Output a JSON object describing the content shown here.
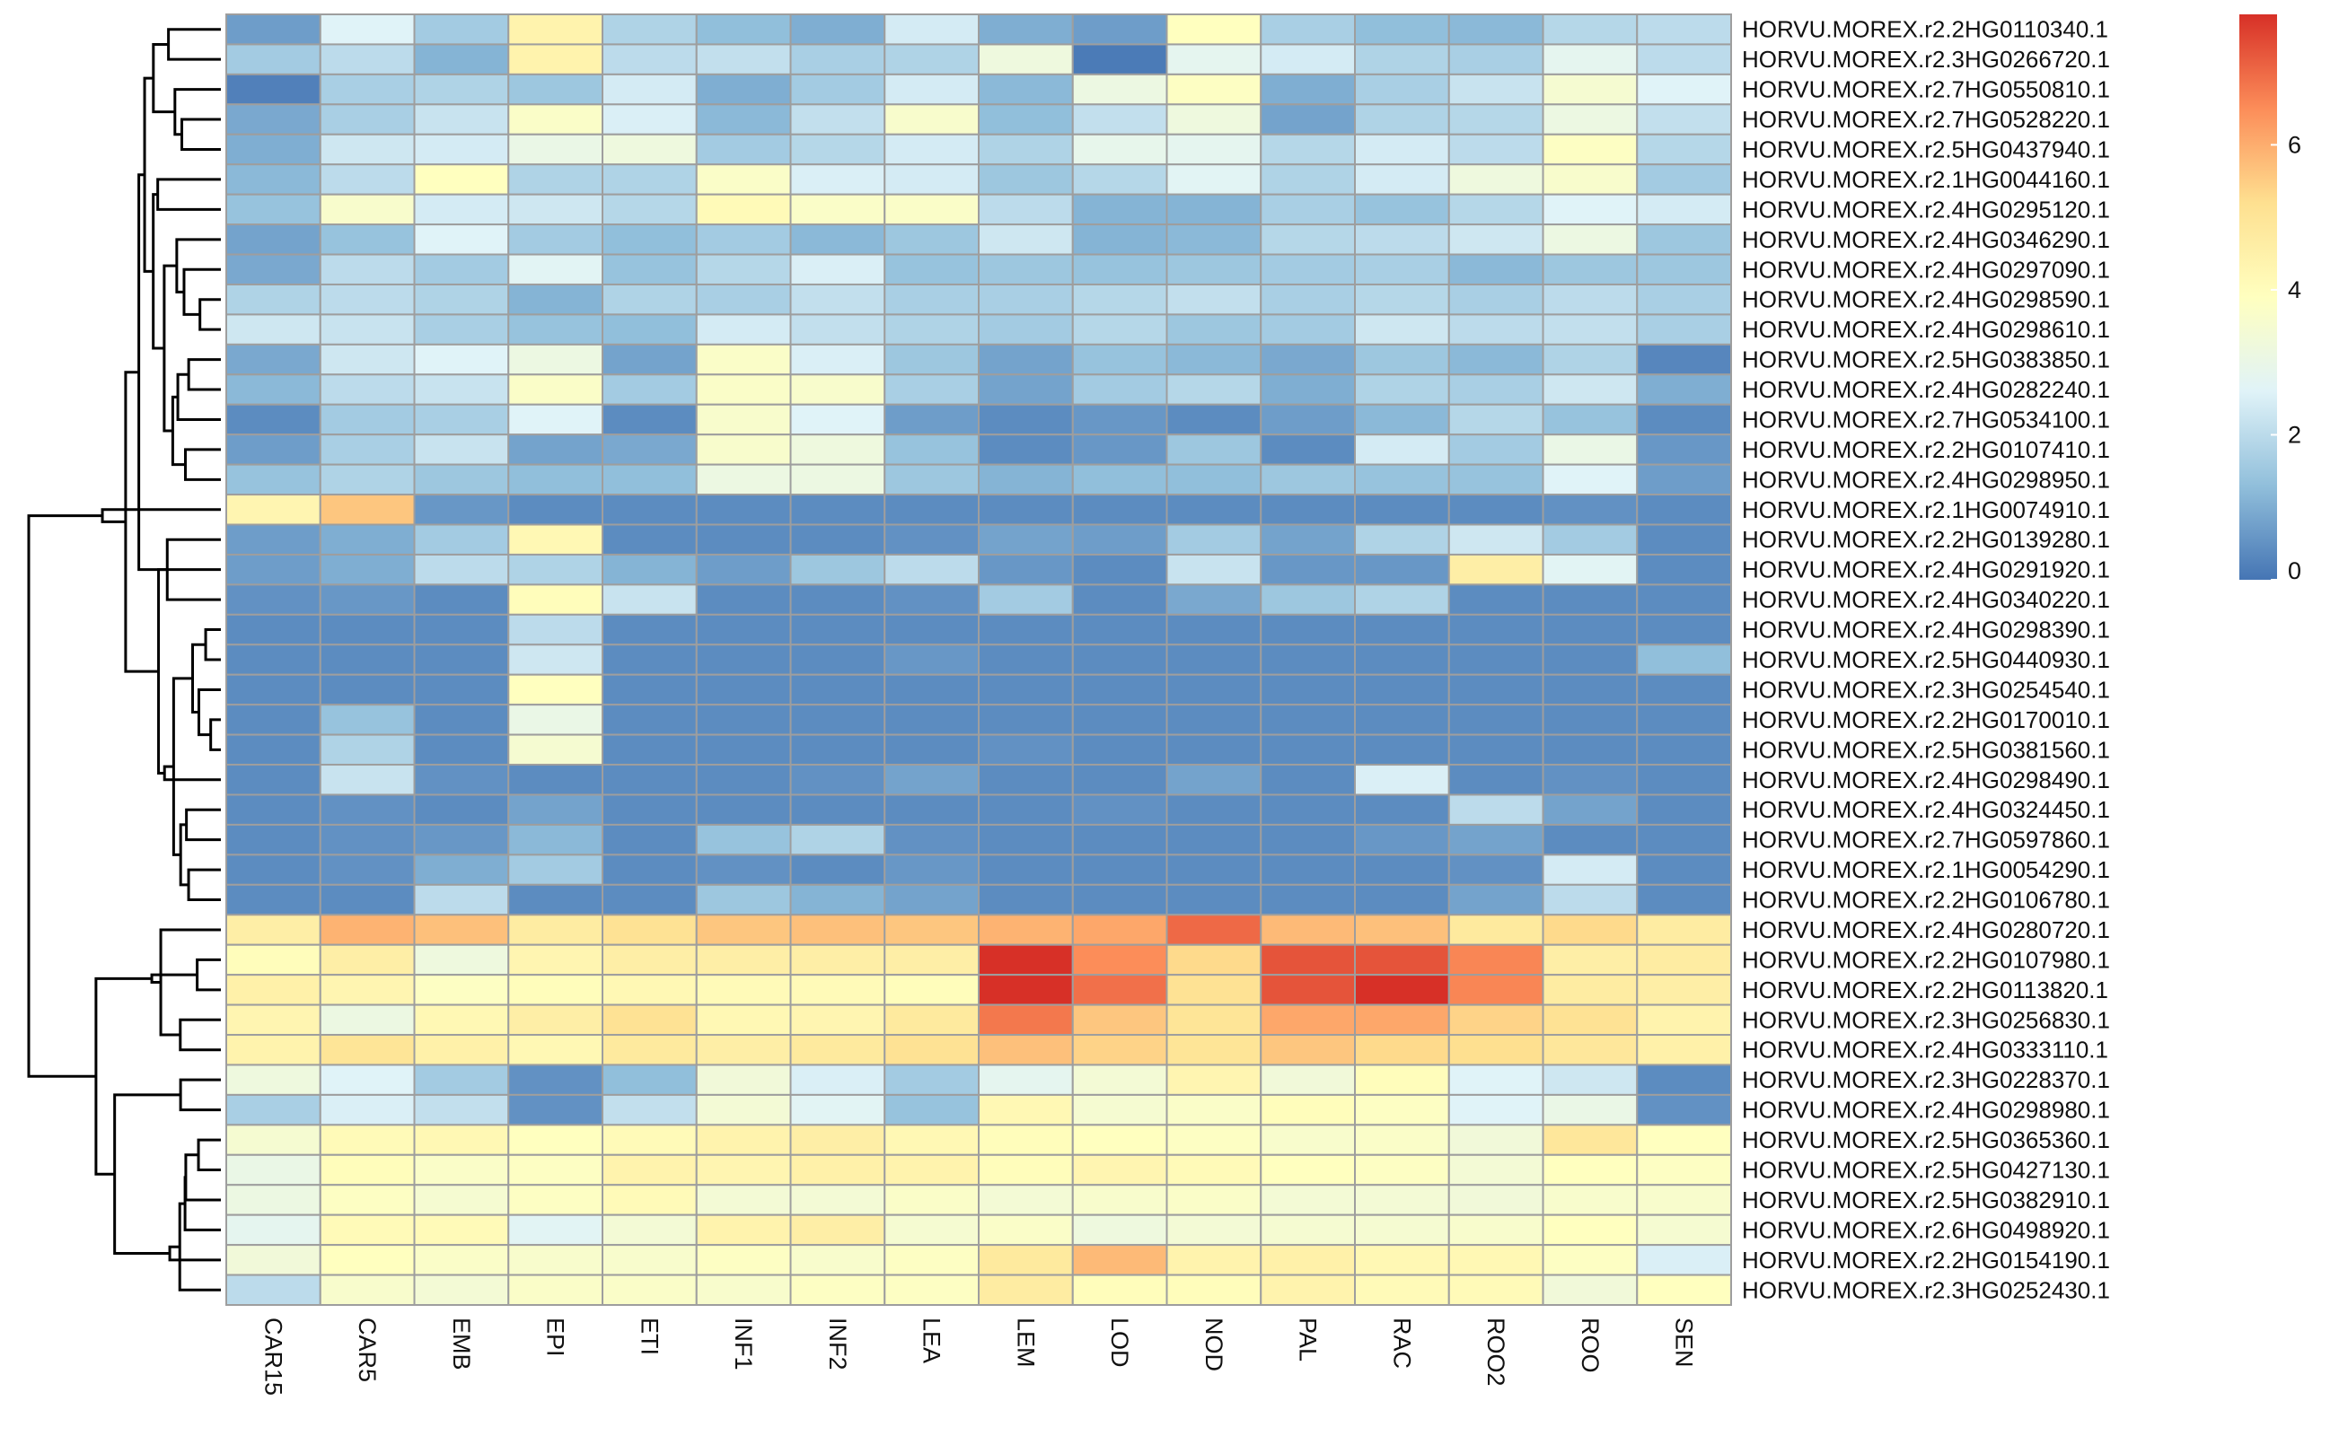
{
  "chart_data": {
    "type": "heatmap",
    "title": "",
    "xlabel": "",
    "ylabel": "",
    "columns": [
      "CAR15",
      "CAR5",
      "EMB",
      "EPI",
      "ETI",
      "INF1",
      "INF2",
      "LEA",
      "LEM",
      "LOD",
      "NOD",
      "PAL",
      "RAC",
      "ROO2",
      "ROO",
      "SEN"
    ],
    "rows": [
      "HORVU.MOREX.r2.2HG0110340.1",
      "HORVU.MOREX.r2.3HG0266720.1",
      "HORVU.MOREX.r2.7HG0550810.1",
      "HORVU.MOREX.r2.7HG0528220.1",
      "HORVU.MOREX.r2.5HG0437940.1",
      "HORVU.MOREX.r2.1HG0044160.1",
      "HORVU.MOREX.r2.4HG0295120.1",
      "HORVU.MOREX.r2.4HG0346290.1",
      "HORVU.MOREX.r2.4HG0297090.1",
      "HORVU.MOREX.r2.4HG0298590.1",
      "HORVU.MOREX.r2.4HG0298610.1",
      "HORVU.MOREX.r2.5HG0383850.1",
      "HORVU.MOREX.r2.4HG0282240.1",
      "HORVU.MOREX.r2.7HG0534100.1",
      "HORVU.MOREX.r2.2HG0107410.1",
      "HORVU.MOREX.r2.4HG0298950.1",
      "HORVU.MOREX.r2.1HG0074910.1",
      "HORVU.MOREX.r2.2HG0139280.1",
      "HORVU.MOREX.r2.4HG0291920.1",
      "HORVU.MOREX.r2.4HG0340220.1",
      "HORVU.MOREX.r2.4HG0298390.1",
      "HORVU.MOREX.r2.5HG0440930.1",
      "HORVU.MOREX.r2.3HG0254540.1",
      "HORVU.MOREX.r2.2HG0170010.1",
      "HORVU.MOREX.r2.5HG0381560.1",
      "HORVU.MOREX.r2.4HG0298490.1",
      "HORVU.MOREX.r2.4HG0324450.1",
      "HORVU.MOREX.r2.7HG0597860.1",
      "HORVU.MOREX.r2.1HG0054290.1",
      "HORVU.MOREX.r2.2HG0106780.1",
      "HORVU.MOREX.r2.4HG0280720.1",
      "HORVU.MOREX.r2.2HG0107980.1",
      "HORVU.MOREX.r2.2HG0113820.1",
      "HORVU.MOREX.r2.3HG0256830.1",
      "HORVU.MOREX.r2.4HG0333110.1",
      "HORVU.MOREX.r2.3HG0228370.1",
      "HORVU.MOREX.r2.4HG0298980.1",
      "HORVU.MOREX.r2.5HG0365360.1",
      "HORVU.MOREX.r2.5HG0427130.1",
      "HORVU.MOREX.r2.5HG0382910.1",
      "HORVU.MOREX.r2.6HG0498920.1",
      "HORVU.MOREX.r2.2HG0154190.1",
      "HORVU.MOREX.r2.3HG0252430.1"
    ],
    "values": [
      [
        0.7,
        2.6,
        1.6,
        4.4,
        1.8,
        1.3,
        1.0,
        2.4,
        1.0,
        0.7,
        3.9,
        1.7,
        1.3,
        1.2,
        1.9,
        2.0
      ],
      [
        1.6,
        2.0,
        1.1,
        4.4,
        2.0,
        2.1,
        1.7,
        1.8,
        3.2,
        0.1,
        2.8,
        2.4,
        1.8,
        1.7,
        2.8,
        2.0
      ],
      [
        0.2,
        1.7,
        1.8,
        1.5,
        2.4,
        1.0,
        1.6,
        2.4,
        1.2,
        3.1,
        3.8,
        1.0,
        1.7,
        2.2,
        3.5,
        2.6
      ],
      [
        0.9,
        1.7,
        2.2,
        3.7,
        2.5,
        1.2,
        2.1,
        3.6,
        1.3,
        2.1,
        3.2,
        0.8,
        1.8,
        1.9,
        3.1,
        2.1
      ],
      [
        1.0,
        2.3,
        2.4,
        3.0,
        3.2,
        1.6,
        1.9,
        2.4,
        1.8,
        2.9,
        2.8,
        1.9,
        2.4,
        2.0,
        3.8,
        1.9
      ],
      [
        1.2,
        2.0,
        3.9,
        1.8,
        1.8,
        3.7,
        2.5,
        2.4,
        1.5,
        1.9,
        2.7,
        1.8,
        2.4,
        3.2,
        3.6,
        1.6
      ],
      [
        1.4,
        3.6,
        2.4,
        2.3,
        1.9,
        4.1,
        3.7,
        3.7,
        2.0,
        1.1,
        1.1,
        1.7,
        1.4,
        1.9,
        2.6,
        2.4
      ],
      [
        0.8,
        1.4,
        2.6,
        1.6,
        1.3,
        1.6,
        1.2,
        1.5,
        2.3,
        1.1,
        1.2,
        1.9,
        2.0,
        2.3,
        3.1,
        1.5
      ],
      [
        0.9,
        2.0,
        1.6,
        2.7,
        1.4,
        1.9,
        2.5,
        1.4,
        1.5,
        1.4,
        1.5,
        1.6,
        1.7,
        1.2,
        1.5,
        1.5
      ],
      [
        1.8,
        2.0,
        1.8,
        1.1,
        1.8,
        1.7,
        2.1,
        1.7,
        1.7,
        1.9,
        2.1,
        1.7,
        1.9,
        1.7,
        2.0,
        1.7
      ],
      [
        2.3,
        2.2,
        1.7,
        1.4,
        1.3,
        2.4,
        2.1,
        1.8,
        1.6,
        1.9,
        1.5,
        1.6,
        2.3,
        2.0,
        2.1,
        1.7
      ],
      [
        0.9,
        2.3,
        2.6,
        3.1,
        0.8,
        3.7,
        2.5,
        1.5,
        0.8,
        1.4,
        1.2,
        0.9,
        1.5,
        1.2,
        1.8,
        0.3
      ],
      [
        1.2,
        2.0,
        2.2,
        3.7,
        1.6,
        3.7,
        3.6,
        1.7,
        0.8,
        1.6,
        1.9,
        1.0,
        1.8,
        1.7,
        2.3,
        1.0
      ],
      [
        0.4,
        1.6,
        1.7,
        2.6,
        0.4,
        3.6,
        2.6,
        0.7,
        0.4,
        0.6,
        0.4,
        0.7,
        1.2,
        1.9,
        1.4,
        0.4
      ],
      [
        0.7,
        1.7,
        2.2,
        0.8,
        0.9,
        3.6,
        3.2,
        1.4,
        0.4,
        0.6,
        1.5,
        0.4,
        2.4,
        1.6,
        3.0,
        0.6
      ],
      [
        1.4,
        1.8,
        1.5,
        1.3,
        1.3,
        3.1,
        3.1,
        1.5,
        1.1,
        1.3,
        1.3,
        1.5,
        1.4,
        1.4,
        2.6,
        0.7
      ],
      [
        4.3,
        5.6,
        0.6,
        0.4,
        0.4,
        0.4,
        0.4,
        0.4,
        0.4,
        0.4,
        0.4,
        0.4,
        0.4,
        0.4,
        0.5,
        0.4
      ],
      [
        0.7,
        1.0,
        1.6,
        4.2,
        0.4,
        0.4,
        0.4,
        0.5,
        0.8,
        0.7,
        1.6,
        0.8,
        1.8,
        2.3,
        1.6,
        0.4
      ],
      [
        0.7,
        1.0,
        2.0,
        1.8,
        1.1,
        0.7,
        1.5,
        2.0,
        0.6,
        0.4,
        2.2,
        0.6,
        0.6,
        4.6,
        2.7,
        0.4
      ],
      [
        0.5,
        0.6,
        0.4,
        4.0,
        2.2,
        0.4,
        0.4,
        0.5,
        1.6,
        0.4,
        0.9,
        1.5,
        1.8,
        0.4,
        0.4,
        0.4
      ],
      [
        0.4,
        0.4,
        0.4,
        2.0,
        0.4,
        0.4,
        0.4,
        0.4,
        0.4,
        0.4,
        0.4,
        0.4,
        0.4,
        0.4,
        0.4,
        0.4
      ],
      [
        0.4,
        0.4,
        0.4,
        2.3,
        0.4,
        0.4,
        0.4,
        0.6,
        0.4,
        0.4,
        0.4,
        0.4,
        0.4,
        0.4,
        0.4,
        1.3
      ],
      [
        0.4,
        0.4,
        0.4,
        3.9,
        0.4,
        0.4,
        0.4,
        0.4,
        0.4,
        0.4,
        0.4,
        0.4,
        0.4,
        0.4,
        0.4,
        0.4
      ],
      [
        0.4,
        1.4,
        0.4,
        3.0,
        0.4,
        0.4,
        0.4,
        0.4,
        0.4,
        0.4,
        0.4,
        0.4,
        0.4,
        0.4,
        0.4,
        0.4
      ],
      [
        0.4,
        1.8,
        0.4,
        3.5,
        0.4,
        0.4,
        0.4,
        0.4,
        0.5,
        0.4,
        0.4,
        0.4,
        0.4,
        0.4,
        0.4,
        0.4
      ],
      [
        0.4,
        2.2,
        0.5,
        0.4,
        0.4,
        0.4,
        0.5,
        0.8,
        0.4,
        0.4,
        0.8,
        0.4,
        2.5,
        0.4,
        0.5,
        0.4
      ],
      [
        0.4,
        0.5,
        0.4,
        0.8,
        0.4,
        0.4,
        0.4,
        0.4,
        0.4,
        0.5,
        0.4,
        0.4,
        0.4,
        2.0,
        0.8,
        0.4
      ],
      [
        0.4,
        0.5,
        0.6,
        1.2,
        0.4,
        1.4,
        1.8,
        0.5,
        0.4,
        0.4,
        0.4,
        0.4,
        0.6,
        0.8,
        0.4,
        0.4
      ],
      [
        0.4,
        0.5,
        1.0,
        1.6,
        0.4,
        0.5,
        0.4,
        0.6,
        0.4,
        0.4,
        0.4,
        0.4,
        0.4,
        0.5,
        2.4,
        0.4
      ],
      [
        0.4,
        0.4,
        2.0,
        0.4,
        0.4,
        1.5,
        1.1,
        0.8,
        0.4,
        0.4,
        0.4,
        0.4,
        0.4,
        0.8,
        2.0,
        0.4
      ],
      [
        4.6,
        5.9,
        5.7,
        4.7,
        5.1,
        5.6,
        5.7,
        5.6,
        5.9,
        6.1,
        7.0,
        5.8,
        5.7,
        4.8,
        5.3,
        4.7
      ],
      [
        4.0,
        4.6,
        3.2,
        4.3,
        4.6,
        4.6,
        4.6,
        4.6,
        7.8,
        6.5,
        5.3,
        7.3,
        7.3,
        6.6,
        4.6,
        4.7
      ],
      [
        4.5,
        4.3,
        3.8,
        4.0,
        4.2,
        4.1,
        4.1,
        4.0,
        7.8,
        6.9,
        5.1,
        7.3,
        7.8,
        6.6,
        4.7,
        4.6
      ],
      [
        4.3,
        3.1,
        4.2,
        4.6,
        5.1,
        4.2,
        4.3,
        4.8,
        6.8,
        5.6,
        5.0,
        6.1,
        6.1,
        5.4,
        5.1,
        4.4
      ],
      [
        4.4,
        5.0,
        4.5,
        4.2,
        4.8,
        4.6,
        4.8,
        5.1,
        5.7,
        5.4,
        5.0,
        5.6,
        5.3,
        5.2,
        4.9,
        4.5
      ],
      [
        3.2,
        2.6,
        1.6,
        0.5,
        1.3,
        3.3,
        2.5,
        1.6,
        2.8,
        3.4,
        4.3,
        3.3,
        4.0,
        2.6,
        2.3,
        0.4
      ],
      [
        1.7,
        2.5,
        2.1,
        0.5,
        2.1,
        3.4,
        2.7,
        1.4,
        4.2,
        3.5,
        3.7,
        4.0,
        3.8,
        2.6,
        3.0,
        0.5
      ],
      [
        3.5,
        4.1,
        4.2,
        3.9,
        4.1,
        4.4,
        4.6,
        4.2,
        4.0,
        3.9,
        3.8,
        3.6,
        3.7,
        3.3,
        4.9,
        3.9
      ],
      [
        3.0,
        4.0,
        3.7,
        3.8,
        4.4,
        4.3,
        4.5,
        4.4,
        4.0,
        4.3,
        4.1,
        3.9,
        3.8,
        3.4,
        3.9,
        3.8
      ],
      [
        3.1,
        3.8,
        3.5,
        3.8,
        4.1,
        3.4,
        3.4,
        3.7,
        3.4,
        3.6,
        3.7,
        3.4,
        3.4,
        3.3,
        3.6,
        3.6
      ],
      [
        2.8,
        4.1,
        4.1,
        2.7,
        3.4,
        4.4,
        4.6,
        3.5,
        3.7,
        3.2,
        3.4,
        3.5,
        3.5,
        3.6,
        3.9,
        3.5
      ],
      [
        3.3,
        3.9,
        3.7,
        3.6,
        3.6,
        3.8,
        3.6,
        3.8,
        4.8,
        5.8,
        4.4,
        4.5,
        4.2,
        4.2,
        3.8,
        2.5
      ],
      [
        2.0,
        3.6,
        3.4,
        3.7,
        3.7,
        3.6,
        3.8,
        3.8,
        4.7,
        4.0,
        4.0,
        4.4,
        4.1,
        4.1,
        3.3,
        3.9
      ]
    ],
    "legend": {
      "position": "top-right",
      "range": [
        0,
        7.8
      ],
      "ticks": [
        0,
        2,
        4,
        6
      ],
      "tick_labels": [
        "0",
        "2",
        "4",
        "6"
      ],
      "colors": [
        "#4575b4",
        "#91bfdb",
        "#e0f3f8",
        "#ffffbf",
        "#fee090",
        "#fc8d59",
        "#d73027"
      ]
    },
    "row_dendrogram": true,
    "cell_border_color": "#9e9e9e"
  }
}
